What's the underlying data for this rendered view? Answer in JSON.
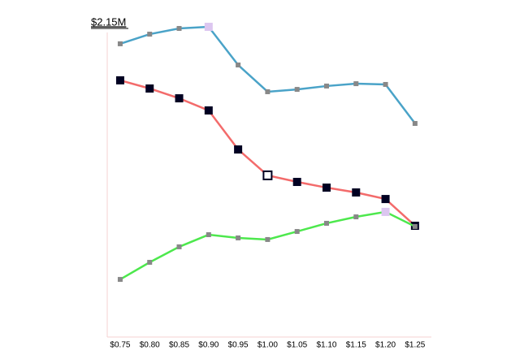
{
  "chart_data": {
    "type": "line",
    "categories": [
      "$0.75",
      "$0.80",
      "$0.85",
      "$0.90",
      "$0.95",
      "$1.00",
      "$1.05",
      "$1.10",
      "$1.15",
      "$1.20",
      "$1.25"
    ],
    "series": [
      {
        "color": "#4aa3c8",
        "marker_color": "#888888",
        "highlight_color": "#dcc6f0",
        "highlight": 3,
        "values": [
          2006000,
          2072000,
          2111000,
          2122000,
          1861000,
          1678000,
          1694000,
          1717000,
          1733000,
          1728000,
          1461000
        ]
      },
      {
        "color": "#f36b6b",
        "marker_color": "#000022",
        "highlight_color": "#ffffff",
        "highlight": 5,
        "values": [
          1756000,
          1700000,
          1633000,
          1550000,
          1283000,
          1106000,
          1061000,
          1022000,
          989000,
          944000,
          761000
        ]
      },
      {
        "color": "#4de84d",
        "marker_color": "#888888",
        "highlight_color": "#dcc6f0",
        "highlight": 9,
        "values": [
          394000,
          511000,
          617000,
          700000,
          678000,
          667000,
          722000,
          778000,
          822000,
          856000,
          756000
        ]
      }
    ],
    "ylim": [
      0,
      2150000
    ],
    "yticks": [
      {
        "value": 2150000,
        "label": "$2.15M"
      }
    ],
    "axis_color": "#f5d0d0"
  }
}
